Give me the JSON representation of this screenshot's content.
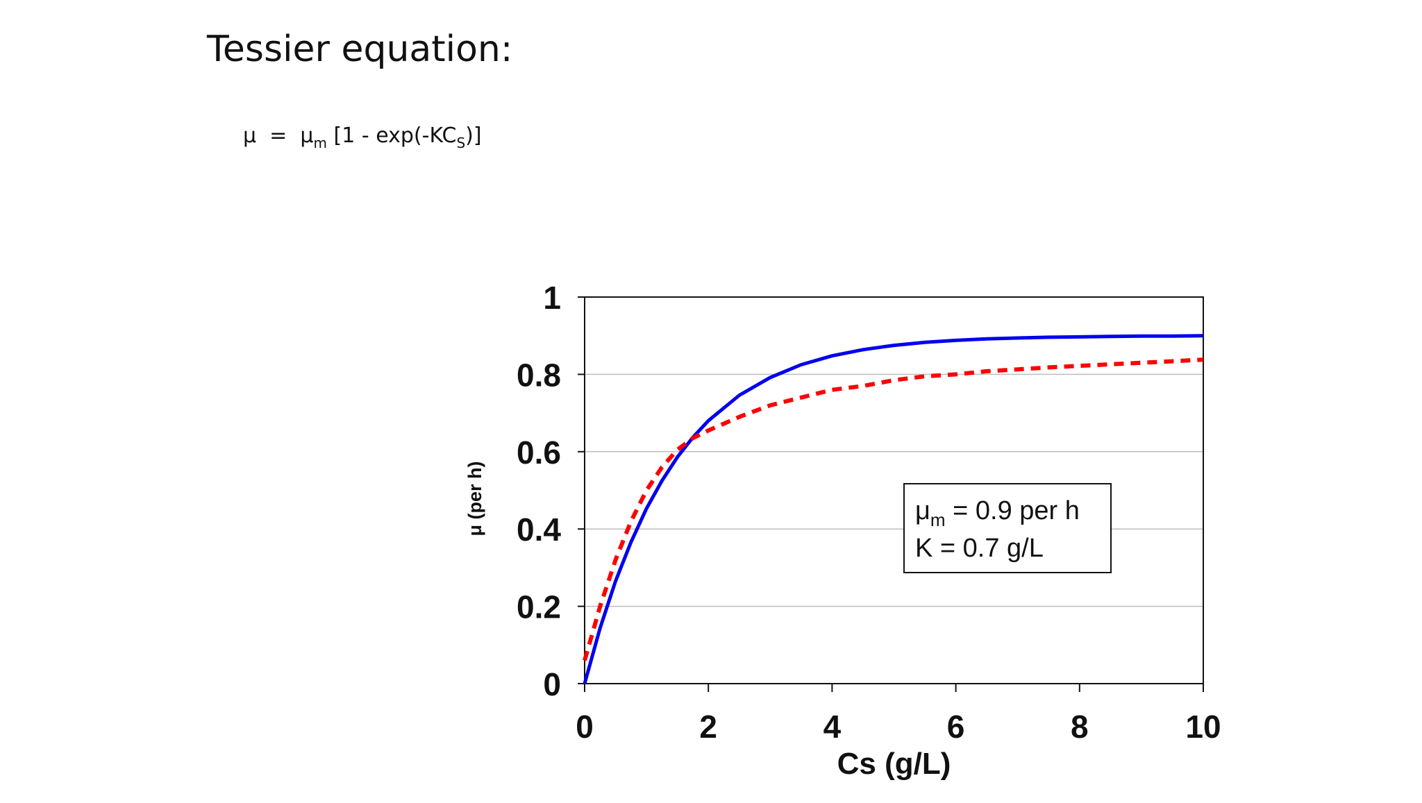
{
  "slide": {
    "title": "Tessier equation:",
    "equation": {
      "lhs": "μ",
      "equals": "=",
      "coef": "μ",
      "coef_sub": "m",
      "body": "[1 - exp(-KC",
      "body_sub": "S",
      "tail": ")]"
    }
  },
  "chart_data": {
    "type": "line",
    "xlabel": "Cs (g/L)",
    "ylabel": "μ (per h)",
    "xlim": [
      0,
      10
    ],
    "ylim": [
      0,
      1
    ],
    "xticks": [
      "0",
      "2",
      "4",
      "6",
      "8",
      "10"
    ],
    "yticks": [
      "0",
      "0.2",
      "0.4",
      "0.6",
      "0.8",
      "1"
    ],
    "grid": "horizontal",
    "x": [
      0,
      0.25,
      0.5,
      0.75,
      1,
      1.25,
      1.5,
      1.75,
      2,
      2.5,
      3,
      3.5,
      4,
      4.5,
      5,
      5.5,
      6,
      6.5,
      7,
      7.5,
      8,
      8.5,
      9,
      9.5,
      10
    ],
    "series": [
      {
        "color": "#0000ee",
        "style": "solid",
        "values": [
          0,
          0.144,
          0.265,
          0.366,
          0.453,
          0.525,
          0.586,
          0.637,
          0.68,
          0.746,
          0.792,
          0.825,
          0.848,
          0.864,
          0.875,
          0.883,
          0.888,
          0.892,
          0.894,
          0.896,
          0.897,
          0.898,
          0.899,
          0.899,
          0.9
        ]
      },
      {
        "color": "#ff0000",
        "style": "dashed",
        "values": [
          0.06,
          0.2,
          0.32,
          0.42,
          0.5,
          0.56,
          0.605,
          0.635,
          0.655,
          0.69,
          0.72,
          0.74,
          0.76,
          0.77,
          0.785,
          0.795,
          0.8,
          0.808,
          0.813,
          0.818,
          0.822,
          0.826,
          0.83,
          0.834,
          0.838
        ]
      }
    ],
    "annotation": {
      "line1_main": "μ",
      "line1_sub": "m",
      "line1_rest": " = 0.9 per h",
      "line2": "K = 0.7 g/L"
    }
  }
}
